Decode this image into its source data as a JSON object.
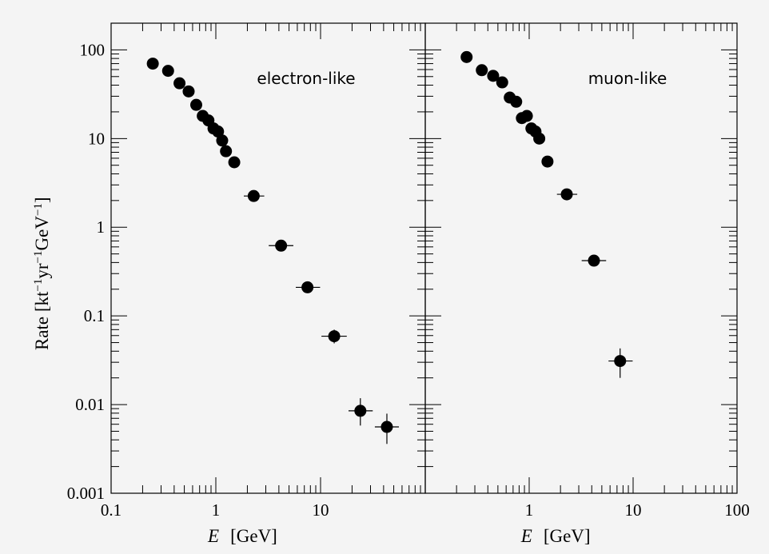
{
  "chart_data": {
    "type": "scatter",
    "xscale": "log",
    "yscale": "log",
    "xlim": [
      0.1,
      100
    ],
    "ylim": [
      0.001,
      200
    ],
    "xlabel_italic": "E",
    "xlabel_unit": "[GeV]",
    "ylabel": "Rate  [kt",
    "ylabel_parts": [
      "Rate  [kt",
      "−1",
      "yr",
      "−1",
      "GeV",
      "−1",
      "]"
    ],
    "ytick_labels": [
      "0.001",
      "0.01",
      "0.1",
      "1",
      "10",
      "100"
    ],
    "ytick_values": [
      0.001,
      0.01,
      0.1,
      1,
      10,
      100
    ],
    "xtick_labels_left": [
      "0.1",
      "1",
      "10"
    ],
    "xtick_values_left": [
      0.1,
      1,
      10
    ],
    "xtick_labels_right": [
      "1",
      "10",
      "100"
    ],
    "xtick_values_right": [
      1,
      10,
      100
    ],
    "grid": false,
    "panels": [
      {
        "name": "electron-like",
        "points": [
          {
            "x": 0.25,
            "y": 70
          },
          {
            "x": 0.35,
            "y": 58
          },
          {
            "x": 0.45,
            "y": 42
          },
          {
            "x": 0.55,
            "y": 34
          },
          {
            "x": 0.65,
            "y": 24
          },
          {
            "x": 0.75,
            "y": 18
          },
          {
            "x": 0.85,
            "y": 16
          },
          {
            "x": 0.95,
            "y": 13
          },
          {
            "x": 1.05,
            "y": 12
          },
          {
            "x": 1.15,
            "y": 9.5
          },
          {
            "x": 1.25,
            "y": 7.2
          },
          {
            "x": 1.5,
            "y": 5.4
          },
          {
            "x": 2.3,
            "y": 2.25,
            "xerr": [
              1.85,
              2.9
            ]
          },
          {
            "x": 4.2,
            "y": 0.62,
            "xerr": [
              3.2,
              5.5
            ]
          },
          {
            "x": 7.5,
            "y": 0.21,
            "xerr": [
              5.8,
              9.9
            ]
          },
          {
            "x": 13.5,
            "y": 0.059,
            "xerr": [
              10.2,
              17.8
            ],
            "yerr": [
              0.049,
              0.07
            ]
          },
          {
            "x": 24,
            "y": 0.0085,
            "xerr": [
              18.5,
              31.5
            ],
            "yerr": [
              0.0058,
              0.0118
            ]
          },
          {
            "x": 43,
            "y": 0.0056,
            "xerr": [
              33,
              56
            ],
            "yerr": [
              0.0036,
              0.0079
            ]
          }
        ]
      },
      {
        "name": "muon-like",
        "points": [
          {
            "x": 0.25,
            "y": 83
          },
          {
            "x": 0.35,
            "y": 59
          },
          {
            "x": 0.45,
            "y": 51
          },
          {
            "x": 0.55,
            "y": 43
          },
          {
            "x": 0.65,
            "y": 29
          },
          {
            "x": 0.75,
            "y": 26
          },
          {
            "x": 0.85,
            "y": 17
          },
          {
            "x": 0.95,
            "y": 18
          },
          {
            "x": 1.05,
            "y": 13
          },
          {
            "x": 1.15,
            "y": 12
          },
          {
            "x": 1.25,
            "y": 10
          },
          {
            "x": 1.5,
            "y": 5.5
          },
          {
            "x": 2.3,
            "y": 2.35,
            "xerr": [
              1.85,
              2.9
            ]
          },
          {
            "x": 4.2,
            "y": 0.42,
            "xerr": [
              3.2,
              5.5
            ]
          },
          {
            "x": 7.5,
            "y": 0.031,
            "xerr": [
              5.8,
              9.9
            ],
            "yerr": [
              0.02,
              0.043
            ]
          }
        ]
      }
    ]
  },
  "colors": {
    "background": "#ffffff",
    "plot_background": "#f4f4f4",
    "ink": "#000000"
  }
}
